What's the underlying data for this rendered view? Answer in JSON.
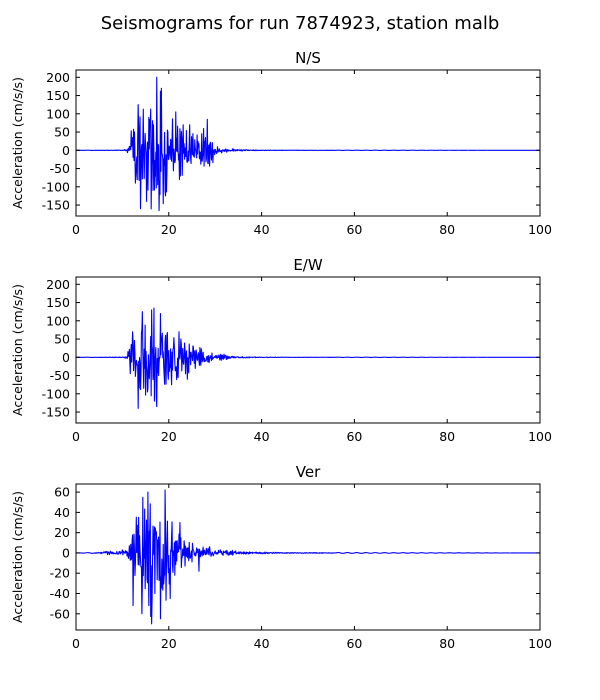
{
  "figure": {
    "title": "Seismograms for run 7874923, station malb"
  },
  "chart_data": [
    {
      "type": "line",
      "title": "N/S",
      "xlabel": "",
      "ylabel": "Acceleration (cm/s/s)",
      "xlim": [
        0,
        100
      ],
      "ylim": [
        -180,
        220
      ],
      "xticks": [
        0,
        20,
        40,
        60,
        80,
        100
      ],
      "yticks": [
        -150,
        -100,
        -50,
        0,
        50,
        100,
        150,
        200
      ],
      "grid": false,
      "color": "#0000ff",
      "envelope": [
        [
          0,
          0
        ],
        [
          10,
          1
        ],
        [
          11,
          4
        ],
        [
          11.5,
          30
        ],
        [
          12,
          55
        ],
        [
          13,
          90
        ],
        [
          14,
          115
        ],
        [
          15,
          105
        ],
        [
          16,
          150
        ],
        [
          17,
          200
        ],
        [
          18,
          165
        ],
        [
          19,
          120
        ],
        [
          20,
          95
        ],
        [
          21,
          110
        ],
        [
          22,
          90
        ],
        [
          23,
          75
        ],
        [
          24,
          60
        ],
        [
          25,
          55
        ],
        [
          26,
          45
        ],
        [
          27,
          50
        ],
        [
          28,
          70
        ],
        [
          29,
          40
        ],
        [
          30,
          22
        ],
        [
          31,
          12
        ],
        [
          32,
          6
        ],
        [
          33,
          4
        ],
        [
          34,
          5
        ],
        [
          35,
          3
        ],
        [
          37,
          2
        ],
        [
          40,
          1
        ],
        [
          45,
          0.5
        ],
        [
          100,
          0
        ]
      ],
      "peaks": [
        [
          12.2,
          35
        ],
        [
          12.8,
          -90
        ],
        [
          13.4,
          125
        ],
        [
          13.9,
          -160
        ],
        [
          15.2,
          -140
        ],
        [
          16.6,
          -110
        ],
        [
          17.4,
          200
        ],
        [
          17.9,
          -165
        ],
        [
          18.4,
          170
        ],
        [
          19.3,
          -125
        ],
        [
          21.5,
          105
        ],
        [
          22.3,
          -80
        ],
        [
          24.5,
          70
        ],
        [
          28.3,
          85
        ]
      ]
    },
    {
      "type": "line",
      "title": "E/W",
      "xlabel": "",
      "ylabel": "Acceleration (cm/s/s)",
      "xlim": [
        0,
        100
      ],
      "ylim": [
        -180,
        220
      ],
      "xticks": [
        0,
        20,
        40,
        60,
        80,
        100
      ],
      "yticks": [
        -150,
        -100,
        -50,
        0,
        50,
        100,
        150,
        200
      ],
      "grid": false,
      "color": "#0000ff",
      "envelope": [
        [
          0,
          0
        ],
        [
          10,
          1
        ],
        [
          11,
          4
        ],
        [
          11.5,
          40
        ],
        [
          12,
          60
        ],
        [
          13,
          85
        ],
        [
          14,
          120
        ],
        [
          15,
          110
        ],
        [
          16,
          130
        ],
        [
          17,
          125
        ],
        [
          18,
          100
        ],
        [
          19,
          115
        ],
        [
          20,
          90
        ],
        [
          21,
          80
        ],
        [
          22,
          75
        ],
        [
          23,
          65
        ],
        [
          24,
          50
        ],
        [
          25,
          45
        ],
        [
          26,
          35
        ],
        [
          27,
          28
        ],
        [
          28,
          20
        ],
        [
          29,
          15
        ],
        [
          30,
          10
        ],
        [
          32,
          8
        ],
        [
          33,
          5
        ],
        [
          35,
          3
        ],
        [
          37,
          2
        ],
        [
          40,
          1
        ],
        [
          45,
          0.5
        ],
        [
          100,
          0
        ]
      ],
      "peaks": [
        [
          11.6,
          -15
        ],
        [
          12.2,
          70
        ],
        [
          13.4,
          -140
        ],
        [
          14.3,
          125
        ],
        [
          15.4,
          -95
        ],
        [
          16.8,
          135
        ],
        [
          17.4,
          -135
        ],
        [
          18.2,
          120
        ],
        [
          20.6,
          -75
        ],
        [
          22.2,
          70
        ],
        [
          24,
          -60
        ]
      ]
    },
    {
      "type": "line",
      "title": "Ver",
      "xlabel": "",
      "ylabel": "Acceleration (cm/s/s)",
      "xlim": [
        0,
        100
      ],
      "ylim": [
        -76,
        68
      ],
      "xticks": [
        0,
        20,
        40,
        60,
        80,
        100
      ],
      "yticks": [
        -60,
        -40,
        -20,
        0,
        20,
        40,
        60
      ],
      "grid": false,
      "color": "#0000ff",
      "envelope": [
        [
          0,
          0
        ],
        [
          5,
          0.5
        ],
        [
          6,
          1.5
        ],
        [
          7,
          2.5
        ],
        [
          8,
          1.5
        ],
        [
          9,
          2
        ],
        [
          10,
          3
        ],
        [
          11,
          4
        ],
        [
          11.5,
          10
        ],
        [
          12,
          22
        ],
        [
          13,
          35
        ],
        [
          14,
          45
        ],
        [
          15,
          55
        ],
        [
          16,
          60
        ],
        [
          17,
          55
        ],
        [
          18,
          50
        ],
        [
          19,
          55
        ],
        [
          20,
          35
        ],
        [
          21,
          30
        ],
        [
          22,
          25
        ],
        [
          23,
          18
        ],
        [
          24,
          12
        ],
        [
          25,
          10
        ],
        [
          26,
          7
        ],
        [
          27,
          6
        ],
        [
          28,
          5
        ],
        [
          29,
          7
        ],
        [
          30,
          5
        ],
        [
          31,
          3
        ],
        [
          32,
          2.5
        ],
        [
          33,
          3
        ],
        [
          34,
          2
        ],
        [
          36,
          1.5
        ],
        [
          38,
          1
        ],
        [
          40,
          1
        ],
        [
          45,
          0.5
        ],
        [
          100,
          0
        ]
      ],
      "peaks": [
        [
          12.3,
          -52
        ],
        [
          13.5,
          35
        ],
        [
          14.2,
          -60
        ],
        [
          15.5,
          60
        ],
        [
          16.3,
          -70
        ],
        [
          17,
          -40
        ],
        [
          18.2,
          -65
        ],
        [
          19.2,
          62
        ],
        [
          20.3,
          -45
        ],
        [
          22.4,
          30
        ],
        [
          26.5,
          -18
        ]
      ]
    }
  ]
}
